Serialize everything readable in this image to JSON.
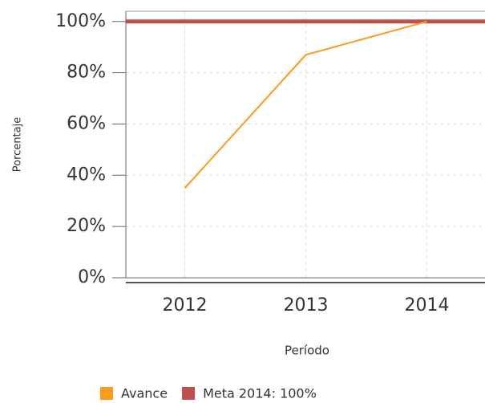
{
  "chart_data": {
    "type": "line",
    "categories": [
      "2012",
      "2013",
      "2014"
    ],
    "series": [
      {
        "name": "Avance",
        "color": "#ff9a1a",
        "values": [
          35,
          87,
          100
        ]
      },
      {
        "name": "Meta 2014: 100%",
        "color": "#c0504d",
        "values": [
          100,
          100,
          100
        ]
      }
    ],
    "x_label": "Período",
    "y_label": "Porcentaje",
    "ylim": [
      0,
      104
    ],
    "yticks": [
      {
        "value": 0,
        "label": "0%"
      },
      {
        "value": 20,
        "label": "20%"
      },
      {
        "value": 40,
        "label": "40%"
      },
      {
        "value": 60,
        "label": "60%"
      },
      {
        "value": 80,
        "label": "80%"
      },
      {
        "value": 100,
        "label": "100%"
      }
    ],
    "grid": true
  }
}
